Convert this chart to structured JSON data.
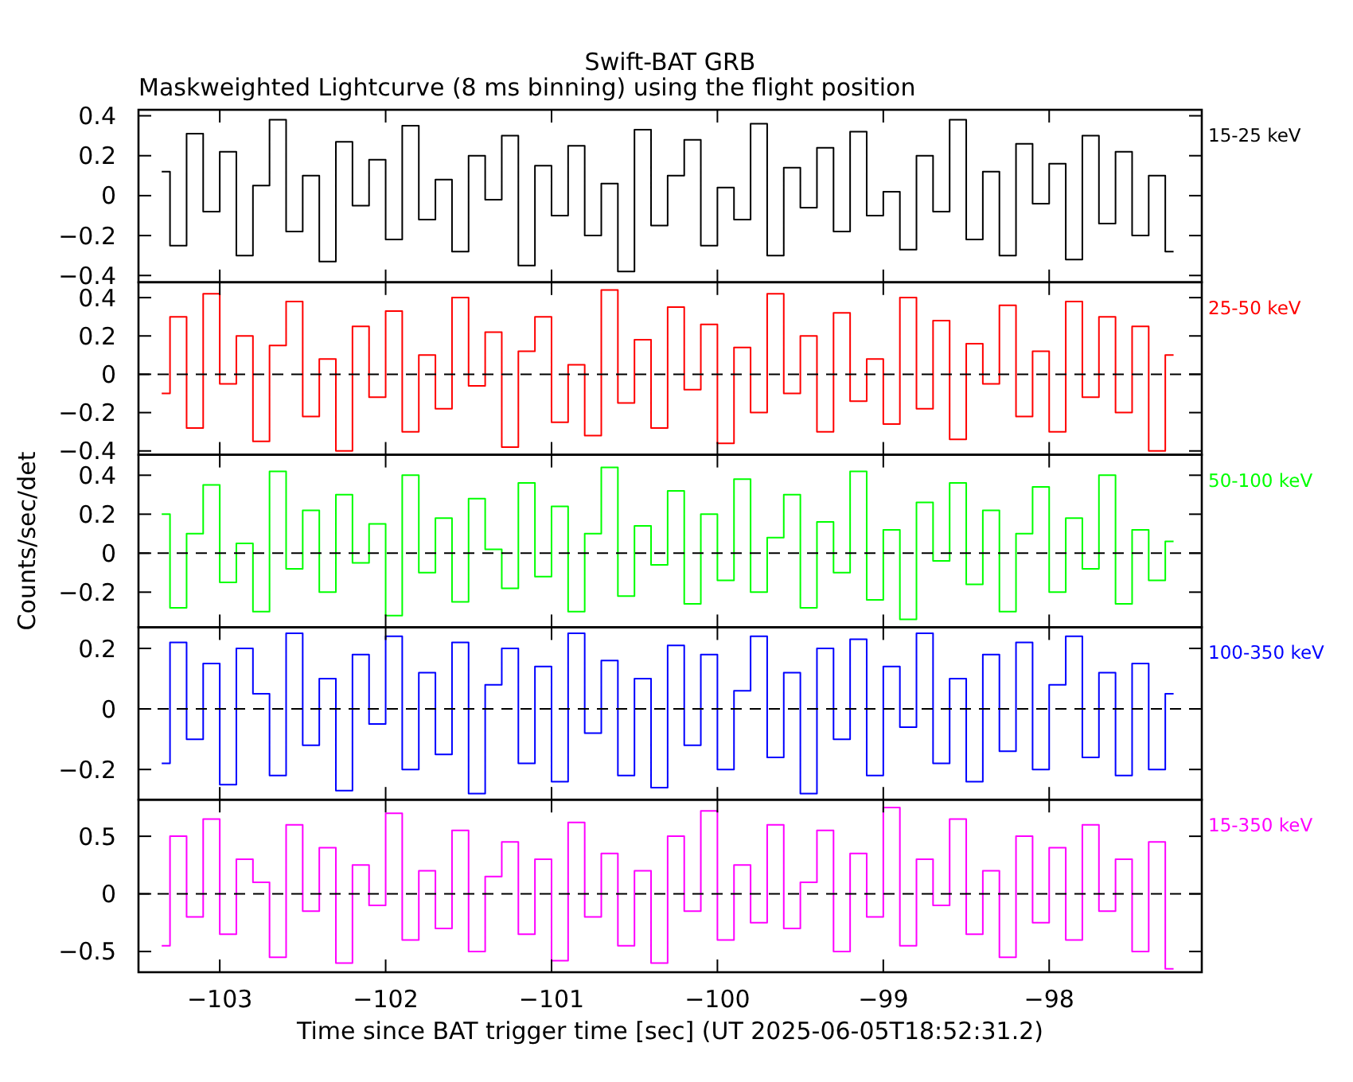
{
  "chart_data": [
    {
      "type": "step",
      "title": "Swift-BAT GRB",
      "subtitle": "Maskweighted Lightcurve (8 ms binning) using the flight position",
      "xlim": [
        -103.49,
        -97.08
      ],
      "xticks": [
        -103,
        -102,
        -101,
        -100,
        -99,
        -98
      ],
      "ylim": [
        -0.434,
        0.43
      ],
      "yticks": [
        -0.4,
        -0.2,
        0,
        0.2,
        0.4
      ],
      "tick_labels": "y",
      "x": [
        -103.35,
        -103.25,
        -103.15,
        -103.05,
        -102.95,
        -102.85,
        -102.75,
        -102.65,
        -102.55,
        -102.45,
        -102.35,
        -102.25,
        -102.15,
        -102.05,
        -101.95,
        -101.85,
        -101.75,
        -101.65,
        -101.55,
        -101.45,
        -101.35,
        -101.25,
        -101.15,
        -101.05,
        -100.95,
        -100.85,
        -100.75,
        -100.65,
        -100.55,
        -100.45,
        -100.35,
        -100.25,
        -100.15,
        -100.05,
        -99.95,
        -99.85,
        -99.75,
        -99.65,
        -99.55,
        -99.45,
        -99.35,
        -99.25,
        -99.15,
        -99.05,
        -98.95,
        -98.85,
        -98.75,
        -98.65,
        -98.55,
        -98.45,
        -98.35,
        -98.25,
        -98.15,
        -98.05,
        -97.95,
        -97.85,
        -97.75,
        -97.65,
        -97.55,
        -97.45,
        -97.35,
        -97.25
      ],
      "series": [
        {
          "name": "15-25 keV",
          "color": "#000000",
          "values": [
            0.12,
            -0.25,
            0.31,
            -0.08,
            0.22,
            -0.3,
            0.05,
            0.38,
            -0.18,
            0.1,
            -0.33,
            0.27,
            -0.05,
            0.18,
            -0.22,
            0.35,
            -0.12,
            0.08,
            -0.28,
            0.2,
            -0.02,
            0.3,
            -0.35,
            0.15,
            -0.1,
            0.25,
            -0.2,
            0.06,
            -0.38,
            0.33,
            -0.15,
            0.1,
            0.28,
            -0.25,
            0.04,
            -0.12,
            0.36,
            -0.3,
            0.14,
            -0.06,
            0.24,
            -0.18,
            0.32,
            -0.1,
            0.02,
            -0.27,
            0.2,
            -0.08,
            0.38,
            -0.22,
            0.12,
            -0.3,
            0.26,
            -0.04,
            0.16,
            -0.32,
            0.3,
            -0.14,
            0.22,
            -0.2,
            0.1,
            -0.28
          ]
        }
      ]
    },
    {
      "type": "step",
      "xlim": [
        -103.49,
        -97.08
      ],
      "xticks": [
        -103,
        -102,
        -101,
        -100,
        -99,
        -98
      ],
      "ylim": [
        -0.42,
        0.48
      ],
      "yticks": [
        -0.4,
        -0.2,
        0,
        0.2,
        0.4
      ],
      "tick_labels": "y",
      "x": [
        -103.35,
        -103.25,
        -103.15,
        -103.05,
        -102.95,
        -102.85,
        -102.75,
        -102.65,
        -102.55,
        -102.45,
        -102.35,
        -102.25,
        -102.15,
        -102.05,
        -101.95,
        -101.85,
        -101.75,
        -101.65,
        -101.55,
        -101.45,
        -101.35,
        -101.25,
        -101.15,
        -101.05,
        -100.95,
        -100.85,
        -100.75,
        -100.65,
        -100.55,
        -100.45,
        -100.35,
        -100.25,
        -100.15,
        -100.05,
        -99.95,
        -99.85,
        -99.75,
        -99.65,
        -99.55,
        -99.45,
        -99.35,
        -99.25,
        -99.15,
        -99.05,
        -98.95,
        -98.85,
        -98.75,
        -98.65,
        -98.55,
        -98.45,
        -98.35,
        -98.25,
        -98.15,
        -98.05,
        -97.95,
        -97.85,
        -97.75,
        -97.65,
        -97.55,
        -97.45,
        -97.35,
        -97.25
      ],
      "ref_lines": [
        {
          "axis": "y",
          "value": 0,
          "color": "#000000",
          "line_style": "dashed"
        }
      ],
      "series": [
        {
          "name": "25-50 keV",
          "color": "#ff0000",
          "values": [
            -0.1,
            0.3,
            -0.28,
            0.42,
            -0.05,
            0.2,
            -0.35,
            0.15,
            0.38,
            -0.22,
            0.08,
            -0.4,
            0.25,
            -0.12,
            0.33,
            -0.3,
            0.1,
            -0.18,
            0.4,
            -0.06,
            0.22,
            -0.38,
            0.12,
            0.3,
            -0.25,
            0.05,
            -0.32,
            0.44,
            -0.15,
            0.18,
            -0.28,
            0.35,
            -0.08,
            0.26,
            -0.36,
            0.14,
            -0.2,
            0.42,
            -0.1,
            0.2,
            -0.3,
            0.32,
            -0.14,
            0.08,
            -0.26,
            0.4,
            -0.18,
            0.28,
            -0.34,
            0.16,
            -0.05,
            0.36,
            -0.22,
            0.12,
            -0.3,
            0.38,
            -0.12,
            0.3,
            -0.2,
            0.25,
            -0.4,
            0.1
          ]
        }
      ]
    },
    {
      "type": "step",
      "ylabel": "Counts/sec/det",
      "xlim": [
        -103.49,
        -97.08
      ],
      "xticks": [
        -103,
        -102,
        -101,
        -100,
        -99,
        -98
      ],
      "ylim": [
        -0.38,
        0.505
      ],
      "yticks": [
        -0.2,
        0,
        0.2,
        0.4
      ],
      "tick_labels": "y",
      "x": [
        -103.35,
        -103.25,
        -103.15,
        -103.05,
        -102.95,
        -102.85,
        -102.75,
        -102.65,
        -102.55,
        -102.45,
        -102.35,
        -102.25,
        -102.15,
        -102.05,
        -101.95,
        -101.85,
        -101.75,
        -101.65,
        -101.55,
        -101.45,
        -101.35,
        -101.25,
        -101.15,
        -101.05,
        -100.95,
        -100.85,
        -100.75,
        -100.65,
        -100.55,
        -100.45,
        -100.35,
        -100.25,
        -100.15,
        -100.05,
        -99.95,
        -99.85,
        -99.75,
        -99.65,
        -99.55,
        -99.45,
        -99.35,
        -99.25,
        -99.15,
        -99.05,
        -98.95,
        -98.85,
        -98.75,
        -98.65,
        -98.55,
        -98.45,
        -98.35,
        -98.25,
        -98.15,
        -98.05,
        -97.95,
        -97.85,
        -97.75,
        -97.65,
        -97.55,
        -97.45,
        -97.35,
        -97.25
      ],
      "ref_lines": [
        {
          "axis": "y",
          "value": 0,
          "color": "#000000",
          "line_style": "dashed"
        }
      ],
      "series": [
        {
          "name": "50-100 keV",
          "color": "#00ff00",
          "values": [
            0.2,
            -0.28,
            0.1,
            0.35,
            -0.15,
            0.05,
            -0.3,
            0.42,
            -0.08,
            0.22,
            -0.2,
            0.3,
            -0.05,
            0.15,
            -0.32,
            0.4,
            -0.1,
            0.18,
            -0.25,
            0.28,
            0.02,
            -0.18,
            0.36,
            -0.12,
            0.24,
            -0.3,
            0.1,
            0.44,
            -0.22,
            0.14,
            -0.06,
            0.32,
            -0.26,
            0.2,
            -0.14,
            0.38,
            -0.2,
            0.08,
            0.3,
            -0.28,
            0.16,
            -0.1,
            0.42,
            -0.24,
            0.12,
            -0.34,
            0.26,
            -0.04,
            0.36,
            -0.16,
            0.22,
            -0.3,
            0.1,
            0.34,
            -0.2,
            0.18,
            -0.08,
            0.4,
            -0.26,
            0.12,
            -0.14,
            0.06
          ]
        }
      ]
    },
    {
      "type": "step",
      "xlim": [
        -103.49,
        -97.08
      ],
      "xticks": [
        -103,
        -102,
        -101,
        -100,
        -99,
        -98
      ],
      "ylim": [
        -0.3,
        0.27
      ],
      "yticks": [
        -0.2,
        0,
        0.2
      ],
      "tick_labels": "y",
      "x": [
        -103.35,
        -103.25,
        -103.15,
        -103.05,
        -102.95,
        -102.85,
        -102.75,
        -102.65,
        -102.55,
        -102.45,
        -102.35,
        -102.25,
        -102.15,
        -102.05,
        -101.95,
        -101.85,
        -101.75,
        -101.65,
        -101.55,
        -101.45,
        -101.35,
        -101.25,
        -101.15,
        -101.05,
        -100.95,
        -100.85,
        -100.75,
        -100.65,
        -100.55,
        -100.45,
        -100.35,
        -100.25,
        -100.15,
        -100.05,
        -99.95,
        -99.85,
        -99.75,
        -99.65,
        -99.55,
        -99.45,
        -99.35,
        -99.25,
        -99.15,
        -99.05,
        -98.95,
        -98.85,
        -98.75,
        -98.65,
        -98.55,
        -98.45,
        -98.35,
        -98.25,
        -98.15,
        -98.05,
        -97.95,
        -97.85,
        -97.75,
        -97.65,
        -97.55,
        -97.45,
        -97.35,
        -97.25
      ],
      "ref_lines": [
        {
          "axis": "y",
          "value": 0,
          "color": "#000000",
          "line_style": "dashed"
        }
      ],
      "series": [
        {
          "name": "100-350 keV",
          "color": "#0000ff",
          "values": [
            -0.18,
            0.22,
            -0.1,
            0.15,
            -0.25,
            0.2,
            0.05,
            -0.22,
            0.25,
            -0.12,
            0.1,
            -0.27,
            0.18,
            -0.05,
            0.24,
            -0.2,
            0.12,
            -0.15,
            0.22,
            -0.28,
            0.08,
            0.2,
            -0.18,
            0.14,
            -0.24,
            0.25,
            -0.08,
            0.16,
            -0.22,
            0.1,
            -0.26,
            0.21,
            -0.12,
            0.18,
            -0.2,
            0.06,
            0.24,
            -0.16,
            0.12,
            -0.28,
            0.2,
            -0.1,
            0.23,
            -0.22,
            0.14,
            -0.06,
            0.25,
            -0.18,
            0.1,
            -0.24,
            0.18,
            -0.14,
            0.22,
            -0.2,
            0.08,
            0.24,
            -0.16,
            0.12,
            -0.22,
            0.15,
            -0.2,
            0.05
          ]
        }
      ]
    },
    {
      "type": "step",
      "xlabel": "Time since BAT trigger time [sec] (UT 2025-06-05T18:52:31.2)",
      "xlim": [
        -103.49,
        -97.08
      ],
      "xticks": [
        -103,
        -102,
        -101,
        -100,
        -99,
        -98
      ],
      "ylim": [
        -0.68,
        0.817
      ],
      "yticks": [
        -0.5,
        0,
        0.5
      ],
      "x": [
        -103.35,
        -103.25,
        -103.15,
        -103.05,
        -102.95,
        -102.85,
        -102.75,
        -102.65,
        -102.55,
        -102.45,
        -102.35,
        -102.25,
        -102.15,
        -102.05,
        -101.95,
        -101.85,
        -101.75,
        -101.65,
        -101.55,
        -101.45,
        -101.35,
        -101.25,
        -101.15,
        -101.05,
        -100.95,
        -100.85,
        -100.75,
        -100.65,
        -100.55,
        -100.45,
        -100.35,
        -100.25,
        -100.15,
        -100.05,
        -99.95,
        -99.85,
        -99.75,
        -99.65,
        -99.55,
        -99.45,
        -99.35,
        -99.25,
        -99.15,
        -99.05,
        -98.95,
        -98.85,
        -98.75,
        -98.65,
        -98.55,
        -98.45,
        -98.35,
        -98.25,
        -98.15,
        -98.05,
        -97.95,
        -97.85,
        -97.75,
        -97.65,
        -97.55,
        -97.45,
        -97.35,
        -97.25
      ],
      "ref_lines": [
        {
          "axis": "y",
          "value": 0,
          "color": "#000000",
          "line_style": "dashed"
        }
      ],
      "series": [
        {
          "name": "15-350 keV",
          "color": "#ff00ff",
          "values": [
            -0.45,
            0.5,
            -0.2,
            0.65,
            -0.35,
            0.3,
            0.1,
            -0.55,
            0.6,
            -0.15,
            0.4,
            -0.6,
            0.25,
            -0.1,
            0.7,
            -0.4,
            0.2,
            -0.3,
            0.55,
            -0.5,
            0.15,
            0.45,
            -0.35,
            0.3,
            -0.58,
            0.62,
            -0.2,
            0.35,
            -0.45,
            0.2,
            -0.6,
            0.5,
            -0.15,
            0.72,
            -0.4,
            0.25,
            -0.25,
            0.6,
            -0.3,
            0.1,
            0.55,
            -0.5,
            0.35,
            -0.2,
            0.75,
            -0.45,
            0.3,
            -0.1,
            0.65,
            -0.35,
            0.2,
            -0.55,
            0.5,
            -0.25,
            0.4,
            -0.4,
            0.6,
            -0.15,
            0.3,
            -0.5,
            0.45,
            -0.65
          ]
        }
      ]
    }
  ]
}
